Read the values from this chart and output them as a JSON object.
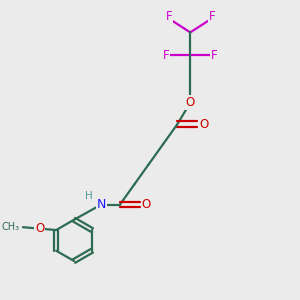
{
  "background_color": "#ebebeb",
  "bond_color": "#2d6b52",
  "o_color": "#cc0000",
  "n_color": "#1a1aff",
  "f_color": "#cc00cc",
  "h_color": "#4d9999",
  "figsize": [
    3.0,
    3.0
  ],
  "dpi": 100,
  "xlim": [
    0,
    10
  ],
  "ylim": [
    0,
    10
  ]
}
